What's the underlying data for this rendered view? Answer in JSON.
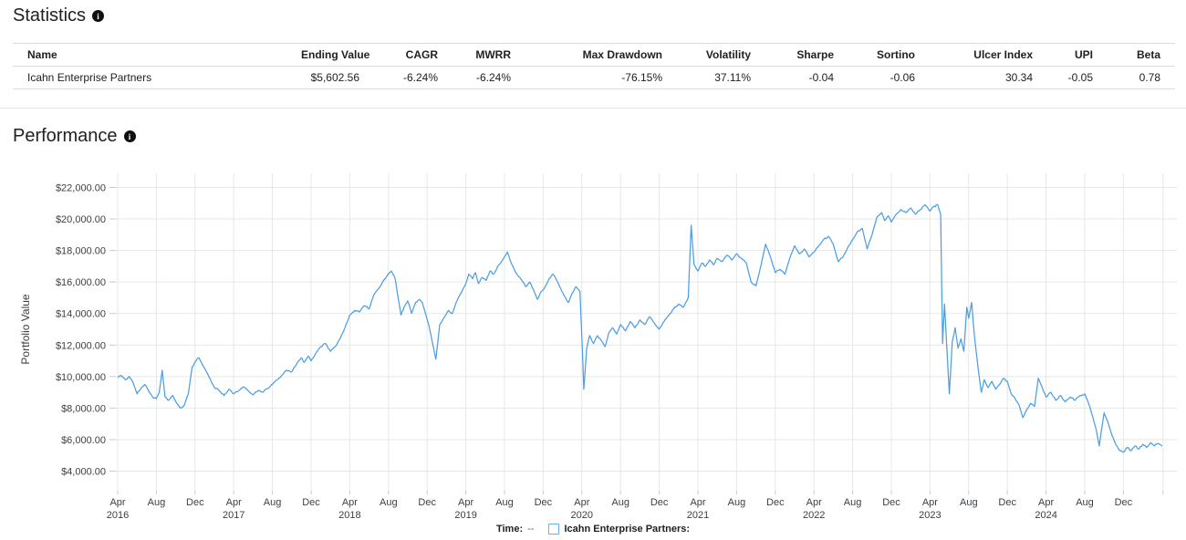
{
  "statistics": {
    "title": "Statistics",
    "headers": [
      "Name",
      "Ending Value",
      "CAGR",
      "MWRR",
      "Max Drawdown",
      "Volatility",
      "Sharpe",
      "Sortino",
      "Ulcer Index",
      "UPI",
      "Beta"
    ],
    "row": {
      "values": [
        "Icahn Enterprise Partners",
        "$5,602.56",
        "-6.24%",
        "-6.24%",
        "-76.15%",
        "37.11%",
        "-0.04",
        "-0.06",
        "30.34",
        "-0.05",
        "0.78"
      ]
    }
  },
  "performance": {
    "title": "Performance"
  },
  "icons": {
    "info": "i"
  },
  "chart_data": {
    "type": "line",
    "title": "Performance",
    "xlabel": "",
    "ylabel": "Portfolio Value",
    "ylim": [
      4000,
      22000
    ],
    "grid": true,
    "line_color": "#4D9EE3",
    "y_ticks": [
      {
        "value": 4000,
        "label": "$4,000.00"
      },
      {
        "value": 6000,
        "label": "$6,000.00"
      },
      {
        "value": 8000,
        "label": "$8,000.00"
      },
      {
        "value": 10000,
        "label": "$10,000.00"
      },
      {
        "value": 12000,
        "label": "$12,000.00"
      },
      {
        "value": 14000,
        "label": "$14,000.00"
      },
      {
        "value": 16000,
        "label": "$16,000.00"
      },
      {
        "value": 18000,
        "label": "$18,000.00"
      },
      {
        "value": 20000,
        "label": "$20,000.00"
      },
      {
        "value": 22000,
        "label": "$22,000.00"
      }
    ],
    "x_ticks": [
      {
        "m": 0,
        "month": "Apr",
        "year": "2016"
      },
      {
        "m": 4,
        "month": "Aug"
      },
      {
        "m": 8,
        "month": "Dec"
      },
      {
        "m": 12,
        "month": "Apr",
        "year": "2017"
      },
      {
        "m": 16,
        "month": "Aug"
      },
      {
        "m": 20,
        "month": "Dec"
      },
      {
        "m": 24,
        "month": "Apr",
        "year": "2018"
      },
      {
        "m": 28,
        "month": "Aug"
      },
      {
        "m": 32,
        "month": "Dec"
      },
      {
        "m": 36,
        "month": "Apr",
        "year": "2019"
      },
      {
        "m": 40,
        "month": "Aug"
      },
      {
        "m": 44,
        "month": "Dec"
      },
      {
        "m": 48,
        "month": "Apr",
        "year": "2020"
      },
      {
        "m": 52,
        "month": "Aug"
      },
      {
        "m": 56,
        "month": "Dec"
      },
      {
        "m": 60,
        "month": "Apr",
        "year": "2021"
      },
      {
        "m": 64,
        "month": "Aug"
      },
      {
        "m": 68,
        "month": "Dec"
      },
      {
        "m": 72,
        "month": "Apr",
        "year": "2022"
      },
      {
        "m": 76,
        "month": "Aug"
      },
      {
        "m": 80,
        "month": "Dec"
      },
      {
        "m": 84,
        "month": "Apr",
        "year": "2023"
      },
      {
        "m": 88,
        "month": "Aug"
      },
      {
        "m": 92,
        "month": "Dec"
      },
      {
        "m": 96,
        "month": "Apr",
        "year": "2024"
      },
      {
        "m": 100,
        "month": "Aug"
      },
      {
        "m": 104,
        "month": "Dec"
      }
    ],
    "extra_gridline_m": 108.1,
    "x_unit": "months since Apr 2016",
    "noise": {
      "amplitude": 90,
      "seed": 987654321
    },
    "legend": {
      "time_label": "Time:",
      "time_value": "--",
      "series_label": "Icahn Enterprise Partners:"
    },
    "series": [
      {
        "name": "Icahn Enterprise Partners",
        "points": [
          [
            0,
            9950
          ],
          [
            0.4,
            10050
          ],
          [
            0.8,
            9800
          ],
          [
            1.2,
            10000
          ],
          [
            1.6,
            9600
          ],
          [
            2,
            8900
          ],
          [
            2.4,
            9250
          ],
          [
            2.8,
            9500
          ],
          [
            3.2,
            9100
          ],
          [
            3.6,
            8700
          ],
          [
            4,
            8600
          ],
          [
            4.3,
            9000
          ],
          [
            4.6,
            10400
          ],
          [
            4.9,
            8700
          ],
          [
            5.3,
            8500
          ],
          [
            5.7,
            8800
          ],
          [
            6.1,
            8300
          ],
          [
            6.5,
            8000
          ],
          [
            6.9,
            8200
          ],
          [
            7.3,
            8900
          ],
          [
            7.7,
            10600
          ],
          [
            8.1,
            11000
          ],
          [
            8.4,
            11200
          ],
          [
            8.8,
            10700
          ],
          [
            9.2,
            10300
          ],
          [
            9.6,
            9800
          ],
          [
            10,
            9300
          ],
          [
            10.5,
            9100
          ],
          [
            11,
            8800
          ],
          [
            11.5,
            9200
          ],
          [
            12,
            8900
          ],
          [
            12.5,
            9100
          ],
          [
            13,
            9350
          ],
          [
            13.5,
            9100
          ],
          [
            14,
            8850
          ],
          [
            14.5,
            9100
          ],
          [
            15,
            9000
          ],
          [
            15.5,
            9250
          ],
          [
            16,
            9500
          ],
          [
            16.5,
            9800
          ],
          [
            17,
            10100
          ],
          [
            17.5,
            10400
          ],
          [
            18,
            10300
          ],
          [
            18.5,
            10800
          ],
          [
            19,
            11200
          ],
          [
            19.3,
            10900
          ],
          [
            19.7,
            11300
          ],
          [
            20,
            11000
          ],
          [
            20.5,
            11500
          ],
          [
            21,
            11900
          ],
          [
            21.5,
            12100
          ],
          [
            22,
            11600
          ],
          [
            22.5,
            11900
          ],
          [
            23,
            12400
          ],
          [
            23.5,
            13100
          ],
          [
            24,
            13900
          ],
          [
            24.5,
            14200
          ],
          [
            25,
            14100
          ],
          [
            25.5,
            14500
          ],
          [
            26,
            14300
          ],
          [
            26.5,
            15200
          ],
          [
            27,
            15600
          ],
          [
            27.5,
            16100
          ],
          [
            28,
            16500
          ],
          [
            28.3,
            16700
          ],
          [
            28.7,
            16200
          ],
          [
            29,
            15000
          ],
          [
            29.3,
            13900
          ],
          [
            29.6,
            14400
          ],
          [
            30,
            14800
          ],
          [
            30.4,
            14000
          ],
          [
            30.8,
            14700
          ],
          [
            31.2,
            14900
          ],
          [
            31.5,
            14700
          ],
          [
            32.2,
            13200
          ],
          [
            32.9,
            11100
          ],
          [
            33.3,
            13300
          ],
          [
            33.7,
            13700
          ],
          [
            34.2,
            14200
          ],
          [
            34.6,
            14000
          ],
          [
            35,
            14700
          ],
          [
            35.5,
            15300
          ],
          [
            36,
            15900
          ],
          [
            36.3,
            16500
          ],
          [
            36.7,
            16200
          ],
          [
            37,
            16600
          ],
          [
            37.3,
            15900
          ],
          [
            37.7,
            16300
          ],
          [
            38.1,
            16100
          ],
          [
            38.5,
            16700
          ],
          [
            38.9,
            16500
          ],
          [
            39.3,
            17000
          ],
          [
            39.7,
            17300
          ],
          [
            40,
            17600
          ],
          [
            40.3,
            17900
          ],
          [
            40.7,
            17200
          ],
          [
            41,
            16800
          ],
          [
            41.4,
            16400
          ],
          [
            41.8,
            16100
          ],
          [
            42.2,
            15700
          ],
          [
            42.6,
            16000
          ],
          [
            43,
            15500
          ],
          [
            43.4,
            14900
          ],
          [
            43.8,
            15400
          ],
          [
            44.2,
            15700
          ],
          [
            44.6,
            16200
          ],
          [
            45,
            16500
          ],
          [
            45.4,
            16100
          ],
          [
            45.8,
            15600
          ],
          [
            46.2,
            15100
          ],
          [
            46.6,
            14700
          ],
          [
            47,
            15300
          ],
          [
            47.4,
            15700
          ],
          [
            47.8,
            15400
          ],
          [
            48,
            12500
          ],
          [
            48.2,
            9200
          ],
          [
            48.5,
            11800
          ],
          [
            48.8,
            12600
          ],
          [
            49.2,
            12100
          ],
          [
            49.6,
            12600
          ],
          [
            50,
            12300
          ],
          [
            50.4,
            11900
          ],
          [
            50.8,
            12800
          ],
          [
            51.2,
            13100
          ],
          [
            51.6,
            12700
          ],
          [
            52,
            13300
          ],
          [
            52.5,
            12900
          ],
          [
            53,
            13500
          ],
          [
            53.5,
            13100
          ],
          [
            54,
            13600
          ],
          [
            54.5,
            13300
          ],
          [
            55,
            13800
          ],
          [
            55.5,
            13400
          ],
          [
            56,
            13000
          ],
          [
            56.5,
            13500
          ],
          [
            57,
            13900
          ],
          [
            57.5,
            14300
          ],
          [
            58,
            14600
          ],
          [
            58.5,
            14400
          ],
          [
            59,
            15000
          ],
          [
            59.3,
            19600
          ],
          [
            59.6,
            17100
          ],
          [
            60,
            16700
          ],
          [
            60.4,
            17200
          ],
          [
            60.8,
            17000
          ],
          [
            61.2,
            17400
          ],
          [
            61.6,
            17100
          ],
          [
            62,
            17500
          ],
          [
            62.5,
            17300
          ],
          [
            63,
            17700
          ],
          [
            63.5,
            17400
          ],
          [
            64,
            17800
          ],
          [
            64.5,
            17500
          ],
          [
            65,
            17200
          ],
          [
            65.5,
            16000
          ],
          [
            66,
            15750
          ],
          [
            66.5,
            17000
          ],
          [
            67,
            18400
          ],
          [
            67.5,
            17600
          ],
          [
            68,
            16600
          ],
          [
            68.5,
            16800
          ],
          [
            69,
            16500
          ],
          [
            69.5,
            17500
          ],
          [
            70,
            18300
          ],
          [
            70.5,
            17800
          ],
          [
            71,
            18100
          ],
          [
            71.5,
            17600
          ],
          [
            72,
            17900
          ],
          [
            72.5,
            18300
          ],
          [
            73,
            18700
          ],
          [
            73.5,
            18900
          ],
          [
            74,
            18400
          ],
          [
            74.5,
            17300
          ],
          [
            75,
            17600
          ],
          [
            75.5,
            18200
          ],
          [
            76,
            18700
          ],
          [
            76.5,
            19200
          ],
          [
            77,
            19400
          ],
          [
            77.5,
            18100
          ],
          [
            78,
            19000
          ],
          [
            78.5,
            20100
          ],
          [
            79,
            20400
          ],
          [
            79.3,
            19900
          ],
          [
            79.7,
            20200
          ],
          [
            80,
            19800
          ],
          [
            80.5,
            20300
          ],
          [
            81,
            20600
          ],
          [
            81.5,
            20400
          ],
          [
            82,
            20700
          ],
          [
            82.5,
            20300
          ],
          [
            83,
            20600
          ],
          [
            83.5,
            20900
          ],
          [
            84,
            20500
          ],
          [
            84.4,
            20800
          ],
          [
            84.8,
            20900
          ],
          [
            85.1,
            20300
          ],
          [
            85.3,
            12100
          ],
          [
            85.5,
            14600
          ],
          [
            85.7,
            12300
          ],
          [
            86,
            8900
          ],
          [
            86.3,
            12200
          ],
          [
            86.6,
            13100
          ],
          [
            86.9,
            11800
          ],
          [
            87.2,
            12400
          ],
          [
            87.5,
            11600
          ],
          [
            87.8,
            14400
          ],
          [
            88,
            13700
          ],
          [
            88.3,
            14700
          ],
          [
            88.6,
            12500
          ],
          [
            89,
            10400
          ],
          [
            89.3,
            9000
          ],
          [
            89.6,
            9800
          ],
          [
            90,
            9300
          ],
          [
            90.4,
            9700
          ],
          [
            90.8,
            9200
          ],
          [
            91.2,
            9500
          ],
          [
            91.6,
            9900
          ],
          [
            92,
            9700
          ],
          [
            92.4,
            8900
          ],
          [
            92.8,
            8600
          ],
          [
            93.2,
            8200
          ],
          [
            93.6,
            7400
          ],
          [
            94,
            7900
          ],
          [
            94.4,
            8300
          ],
          [
            94.8,
            8100
          ],
          [
            95.2,
            9900
          ],
          [
            95.6,
            9300
          ],
          [
            96,
            8700
          ],
          [
            96.5,
            9000
          ],
          [
            97,
            8500
          ],
          [
            97.5,
            8800
          ],
          [
            98,
            8400
          ],
          [
            98.5,
            8700
          ],
          [
            99,
            8500
          ],
          [
            99.5,
            8800
          ],
          [
            100,
            8900
          ],
          [
            100.4,
            8300
          ],
          [
            100.8,
            7500
          ],
          [
            101.2,
            6600
          ],
          [
            101.5,
            5600
          ],
          [
            102,
            7700
          ],
          [
            102.4,
            7100
          ],
          [
            102.8,
            6300
          ],
          [
            103.2,
            5700
          ],
          [
            103.6,
            5300
          ],
          [
            104,
            5200
          ],
          [
            104.4,
            5500
          ],
          [
            104.8,
            5300
          ],
          [
            105.2,
            5600
          ],
          [
            105.6,
            5400
          ],
          [
            106,
            5700
          ],
          [
            106.4,
            5500
          ],
          [
            106.8,
            5800
          ],
          [
            107.2,
            5600
          ],
          [
            107.6,
            5750
          ],
          [
            108,
            5603
          ]
        ]
      }
    ]
  }
}
